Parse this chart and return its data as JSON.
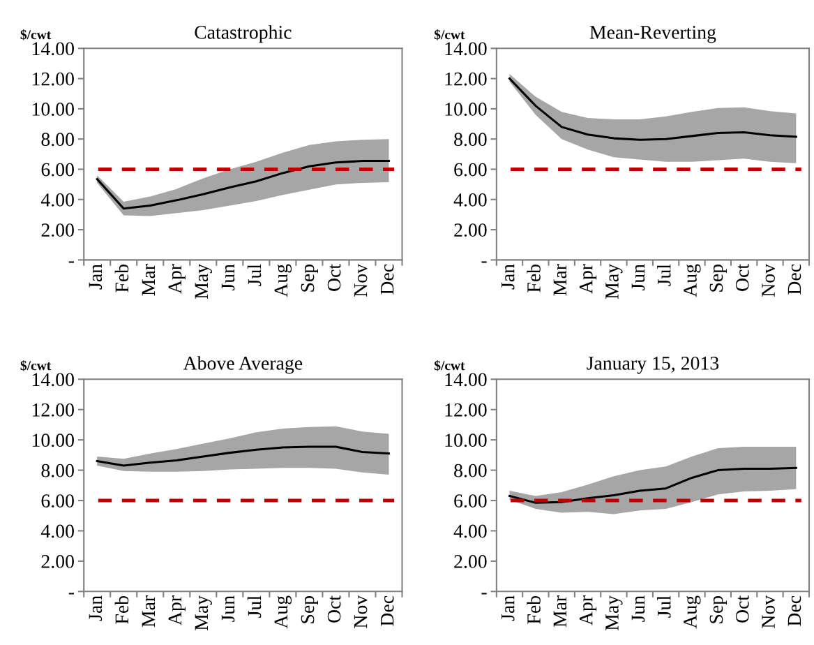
{
  "chart_data": [
    {
      "type": "line",
      "title": "Catastrophic",
      "ylabel": "$/cwt",
      "categories": [
        "Jan",
        "Feb",
        "Mar",
        "Apr",
        "May",
        "Jun",
        "Jul",
        "Aug",
        "Sep",
        "Oct",
        "Nov",
        "Dec"
      ],
      "ylim": [
        0,
        14
      ],
      "yticks": [
        {
          "value": 0,
          "label": "-"
        },
        {
          "value": 2,
          "label": "2.00"
        },
        {
          "value": 4,
          "label": "4.00"
        },
        {
          "value": 6,
          "label": "6.00"
        },
        {
          "value": 8,
          "label": "8.00"
        },
        {
          "value": 10,
          "label": "10.00"
        },
        {
          "value": 12,
          "label": "12.00"
        },
        {
          "value": 14,
          "label": "14.00"
        }
      ],
      "grid": false,
      "marker": "none",
      "line_style": "solid",
      "series": [
        {
          "color": "#000000",
          "values": [
            5.35,
            3.4,
            3.6,
            3.95,
            4.35,
            4.8,
            5.2,
            5.75,
            6.2,
            6.45,
            6.55,
            6.55
          ],
          "lower": [
            5.1,
            2.95,
            2.9,
            3.1,
            3.3,
            3.6,
            3.9,
            4.3,
            4.65,
            5.0,
            5.1,
            5.15
          ],
          "upper": [
            5.6,
            3.85,
            4.2,
            4.7,
            5.4,
            6.0,
            6.5,
            7.1,
            7.6,
            7.85,
            7.95,
            8.0
          ]
        }
      ],
      "ref_lines": [
        {
          "axis": "y",
          "value": 6,
          "color": "#c00000",
          "line_style": "dashed"
        }
      ]
    },
    {
      "type": "line",
      "title": "Mean-Reverting",
      "ylabel": "$/cwt",
      "categories": [
        "Jan",
        "Feb",
        "Mar",
        "Apr",
        "May",
        "Jun",
        "Jul",
        "Aug",
        "Sep",
        "Oct",
        "Nov",
        "Dec"
      ],
      "ylim": [
        0,
        14
      ],
      "yticks": [
        {
          "value": 0,
          "label": "-"
        },
        {
          "value": 2,
          "label": "2.00"
        },
        {
          "value": 4,
          "label": "4.00"
        },
        {
          "value": 6,
          "label": "6.00"
        },
        {
          "value": 8,
          "label": "8.00"
        },
        {
          "value": 10,
          "label": "10.00"
        },
        {
          "value": 12,
          "label": "12.00"
        },
        {
          "value": 14,
          "label": "14.00"
        }
      ],
      "grid": false,
      "marker": "none",
      "line_style": "solid",
      "series": [
        {
          "color": "#000000",
          "values": [
            12.0,
            10.2,
            8.8,
            8.3,
            8.05,
            7.95,
            8.0,
            8.2,
            8.4,
            8.45,
            8.25,
            8.15
          ],
          "lower": [
            11.8,
            9.6,
            8.0,
            7.3,
            6.8,
            6.65,
            6.5,
            6.5,
            6.6,
            6.7,
            6.5,
            6.4
          ],
          "upper": [
            12.3,
            10.8,
            9.8,
            9.4,
            9.3,
            9.3,
            9.5,
            9.8,
            10.05,
            10.1,
            9.85,
            9.7
          ]
        }
      ],
      "ref_lines": [
        {
          "axis": "y",
          "value": 6,
          "color": "#c00000",
          "line_style": "dashed"
        }
      ]
    },
    {
      "type": "line",
      "title": "Above Average",
      "ylabel": "$/cwt",
      "categories": [
        "Jan",
        "Feb",
        "Mar",
        "Apr",
        "May",
        "Jun",
        "Jul",
        "Aug",
        "Sep",
        "Oct",
        "Nov",
        "Dec"
      ],
      "ylim": [
        0,
        14
      ],
      "yticks": [
        {
          "value": 0,
          "label": "-"
        },
        {
          "value": 2,
          "label": "2.00"
        },
        {
          "value": 4,
          "label": "4.00"
        },
        {
          "value": 6,
          "label": "6.00"
        },
        {
          "value": 8,
          "label": "8.00"
        },
        {
          "value": 10,
          "label": "10.00"
        },
        {
          "value": 12,
          "label": "12.00"
        },
        {
          "value": 14,
          "label": "14.00"
        }
      ],
      "grid": false,
      "marker": "none",
      "line_style": "solid",
      "series": [
        {
          "color": "#000000",
          "values": [
            8.6,
            8.3,
            8.5,
            8.65,
            8.9,
            9.15,
            9.35,
            9.5,
            9.55,
            9.55,
            9.2,
            9.1
          ],
          "lower": [
            8.3,
            7.95,
            7.9,
            7.9,
            7.95,
            8.05,
            8.1,
            8.15,
            8.15,
            8.1,
            7.85,
            7.7
          ],
          "upper": [
            8.9,
            8.75,
            9.1,
            9.4,
            9.75,
            10.1,
            10.5,
            10.75,
            10.85,
            10.9,
            10.55,
            10.4
          ]
        }
      ],
      "ref_lines": [
        {
          "axis": "y",
          "value": 6,
          "color": "#c00000",
          "line_style": "dashed"
        }
      ]
    },
    {
      "type": "line",
      "title": "January 15, 2013",
      "ylabel": "$/cwt",
      "categories": [
        "Jan",
        "Feb",
        "Mar",
        "Apr",
        "May",
        "Jun",
        "Jul",
        "Aug",
        "Sep",
        "Oct",
        "Nov",
        "Dec"
      ],
      "ylim": [
        0,
        14
      ],
      "yticks": [
        {
          "value": 0,
          "label": "-"
        },
        {
          "value": 2,
          "label": "2.00"
        },
        {
          "value": 4,
          "label": "4.00"
        },
        {
          "value": 6,
          "label": "6.00"
        },
        {
          "value": 8,
          "label": "8.00"
        },
        {
          "value": 10,
          "label": "10.00"
        },
        {
          "value": 12,
          "label": "12.00"
        },
        {
          "value": 14,
          "label": "14.00"
        }
      ],
      "grid": false,
      "marker": "none",
      "line_style": "solid",
      "series": [
        {
          "color": "#000000",
          "values": [
            6.3,
            5.85,
            5.9,
            6.15,
            6.35,
            6.65,
            6.8,
            7.5,
            8.0,
            8.1,
            8.1,
            8.15
          ],
          "lower": [
            6.05,
            5.45,
            5.2,
            5.25,
            5.1,
            5.35,
            5.45,
            5.9,
            6.4,
            6.6,
            6.65,
            6.75
          ],
          "upper": [
            6.65,
            6.3,
            6.55,
            7.05,
            7.6,
            8.0,
            8.25,
            8.9,
            9.45,
            9.55,
            9.55,
            9.55
          ]
        }
      ],
      "ref_lines": [
        {
          "axis": "y",
          "value": 6,
          "color": "#c00000",
          "line_style": "dashed"
        }
      ]
    }
  ]
}
